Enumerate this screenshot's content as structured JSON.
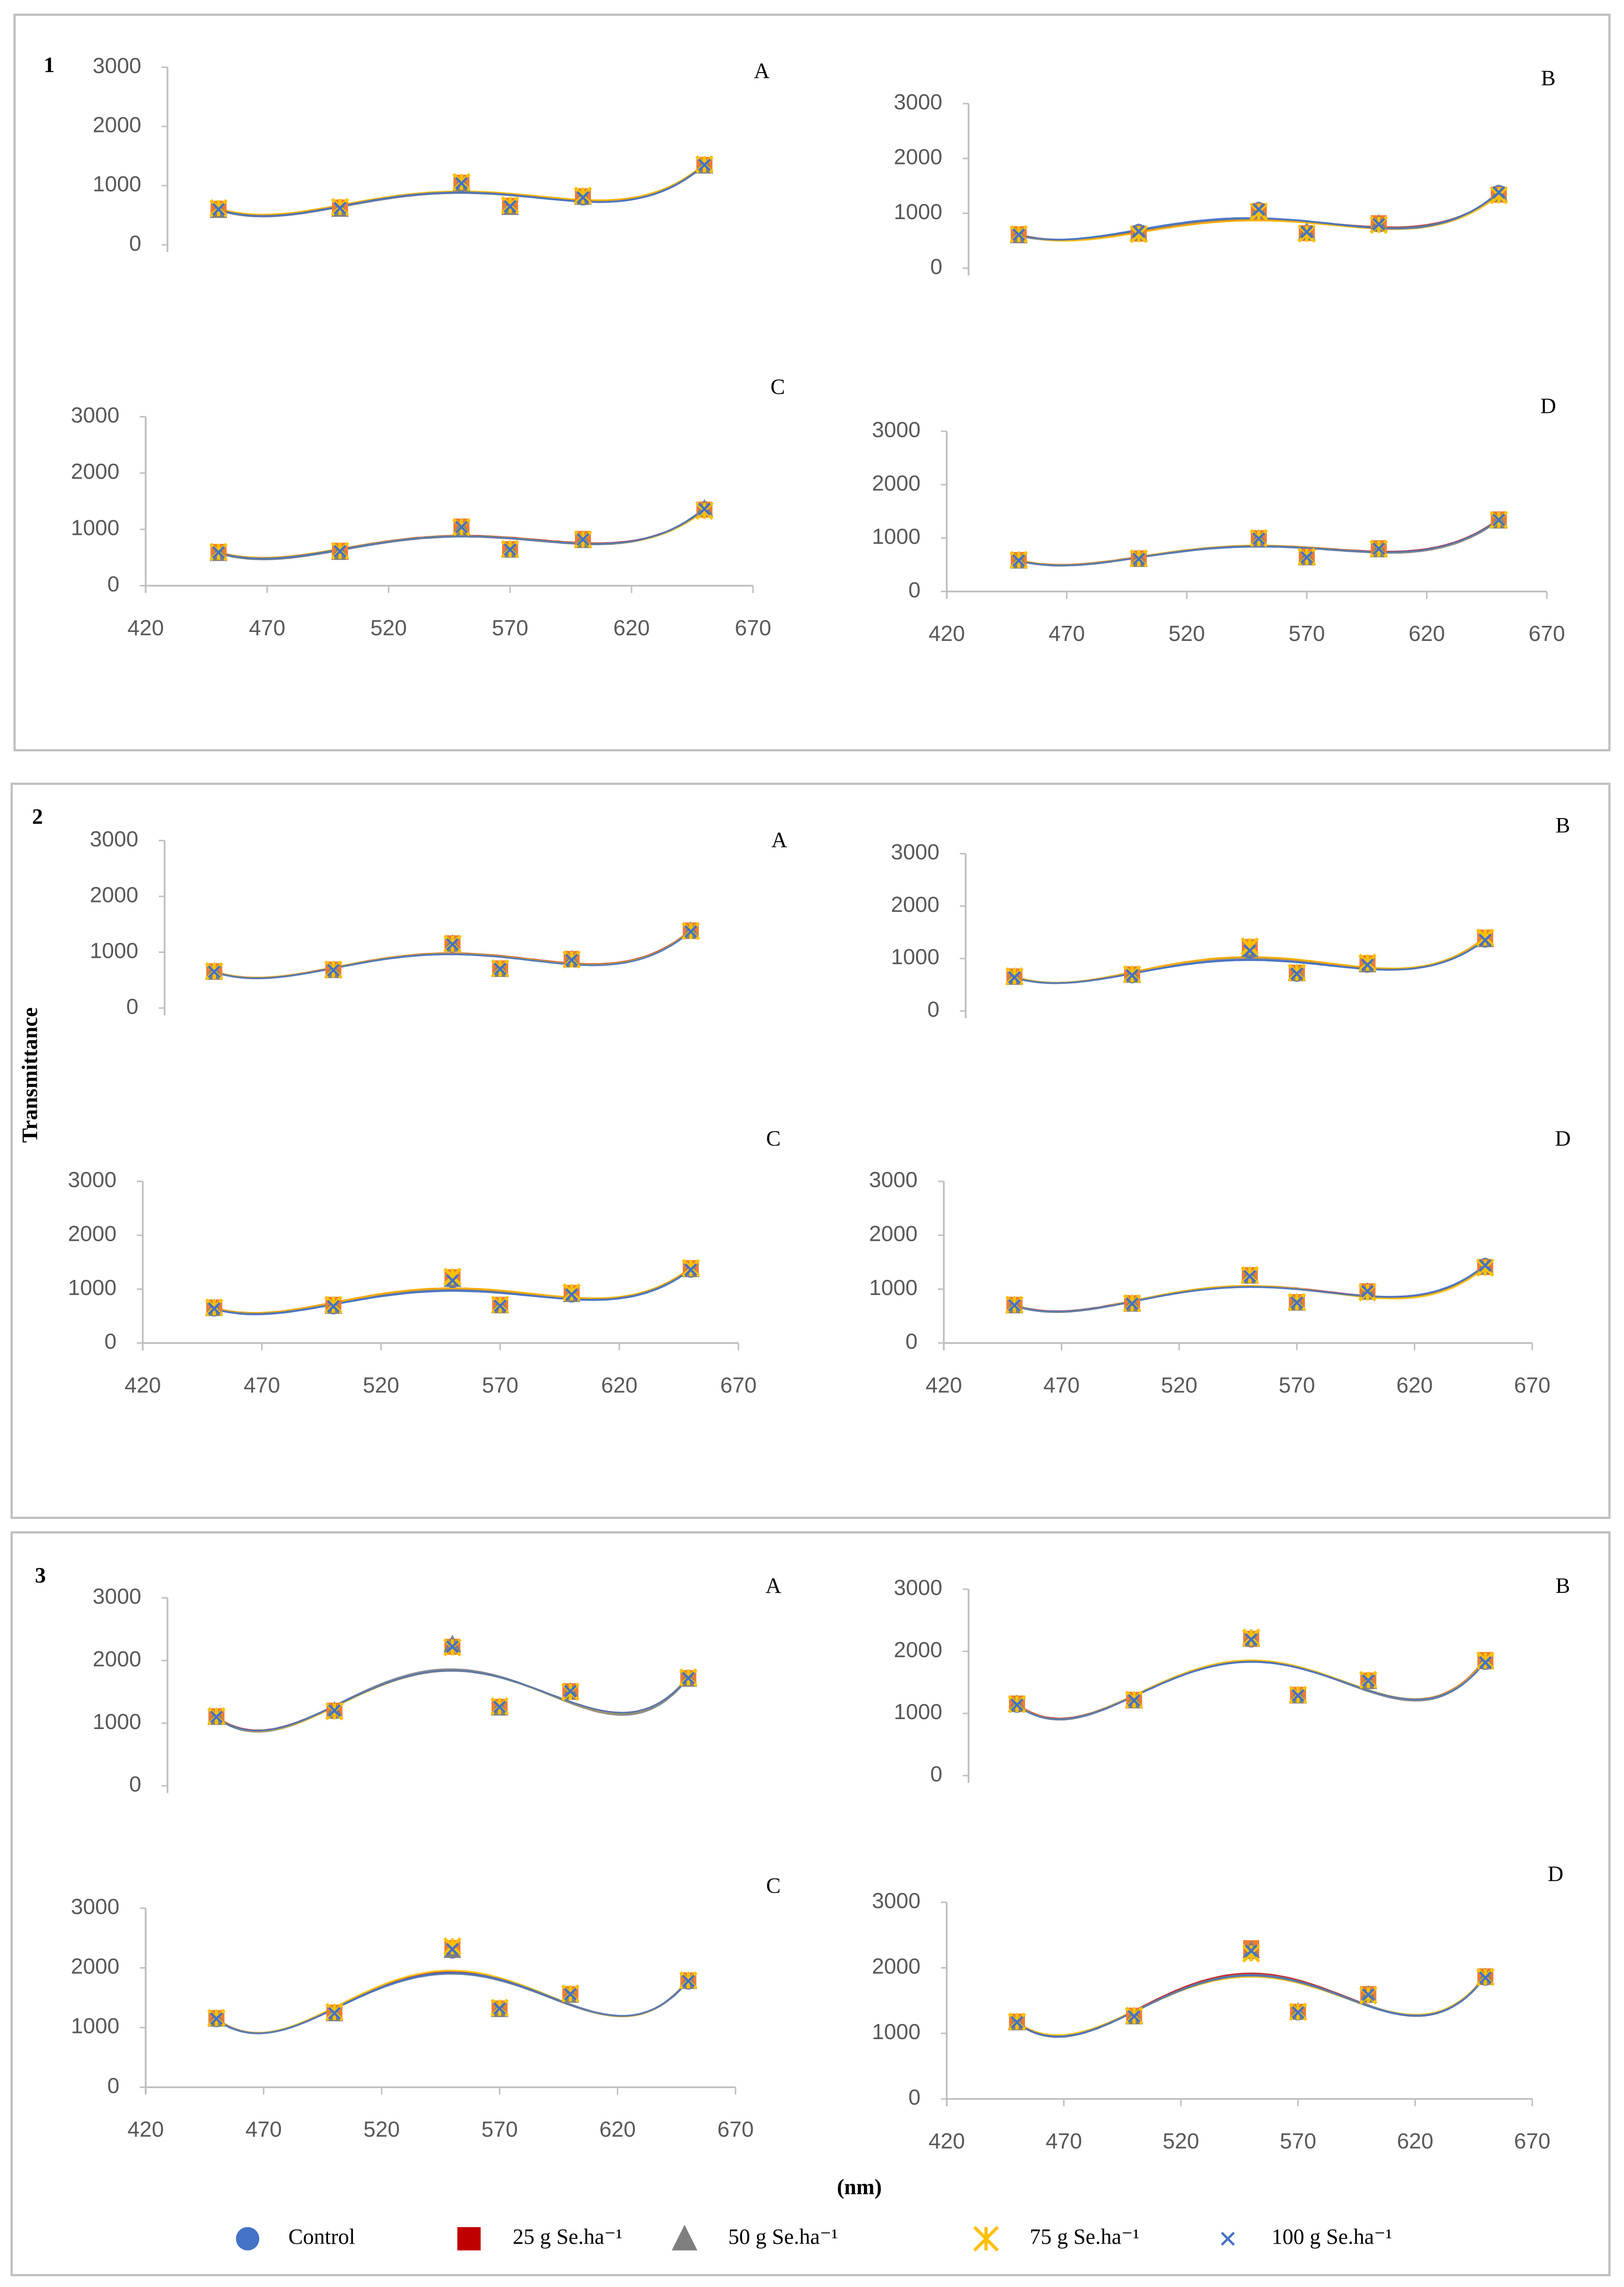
{
  "figure": {
    "panel_groups": [
      "1",
      "2",
      "3"
    ],
    "y_label": "Transmittance",
    "x_label": "(nm)",
    "legend": [
      {
        "name": "Control",
        "color": "#4472c4",
        "marker": "circle"
      },
      {
        "name": "25 g Se.ha⁻¹",
        "color": "#c00000",
        "marker": "square"
      },
      {
        "name": "50 g Se.ha⁻¹",
        "color": "#7f7f7f",
        "marker": "triangle"
      },
      {
        "name": "75 g Se.ha⁻¹",
        "color": "#ffc000",
        "marker": "star"
      },
      {
        "name": "100 g Se.ha⁻¹",
        "color": "#4472c4",
        "marker": "x"
      }
    ]
  },
  "chart_data": [
    {
      "type": "scatter",
      "title": "A",
      "trendline": "polynomial",
      "x": [
        450,
        500,
        550,
        570,
        600,
        650
      ],
      "ylim": [
        0,
        3000
      ],
      "yticks": [
        0,
        1000,
        2000,
        3000
      ],
      "series": [
        {
          "values": [
            600,
            620,
            1030,
            650,
            800,
            1340
          ]
        },
        {
          "values": [
            610,
            630,
            1050,
            660,
            820,
            1350
          ]
        },
        {
          "values": [
            590,
            610,
            1040,
            640,
            810,
            1340
          ]
        },
        {
          "values": [
            620,
            640,
            1060,
            670,
            830,
            1360
          ]
        },
        {
          "values": [
            600,
            620,
            1040,
            650,
            800,
            1350
          ]
        }
      ]
    },
    {
      "type": "scatter",
      "title": "B",
      "trendline": "polynomial",
      "x": [
        450,
        500,
        550,
        570,
        600,
        650
      ],
      "ylim": [
        0,
        3000
      ],
      "yticks": [
        0,
        1000,
        2000,
        3000
      ],
      "series": [
        {
          "values": [
            610,
            660,
            1060,
            650,
            800,
            1370
          ]
        },
        {
          "values": [
            620,
            630,
            1040,
            640,
            820,
            1340
          ]
        },
        {
          "values": [
            600,
            650,
            1050,
            660,
            810,
            1360
          ]
        },
        {
          "values": [
            620,
            620,
            1030,
            630,
            790,
            1330
          ]
        },
        {
          "values": [
            610,
            670,
            1070,
            660,
            800,
            1380
          ]
        }
      ]
    },
    {
      "type": "scatter",
      "title": "C",
      "trendline": "polynomial",
      "x": [
        450,
        500,
        550,
        570,
        600,
        650
      ],
      "xlim": [
        420,
        670
      ],
      "xticks": [
        420,
        470,
        520,
        570,
        620,
        670
      ],
      "ylim": [
        0,
        3000
      ],
      "yticks": [
        0,
        1000,
        2000,
        3000
      ],
      "series": [
        {
          "values": [
            590,
            600,
            1040,
            640,
            820,
            1360
          ]
        },
        {
          "values": [
            600,
            620,
            1050,
            650,
            830,
            1350
          ]
        },
        {
          "values": [
            580,
            600,
            1030,
            640,
            810,
            1370
          ]
        },
        {
          "values": [
            600,
            620,
            1040,
            650,
            820,
            1330
          ]
        },
        {
          "values": [
            590,
            610,
            1040,
            640,
            820,
            1360
          ]
        }
      ]
    },
    {
      "type": "scatter",
      "title": "D",
      "trendline": "polynomial",
      "x": [
        450,
        500,
        550,
        570,
        600,
        650
      ],
      "xlim": [
        420,
        670
      ],
      "xticks": [
        420,
        470,
        520,
        570,
        620,
        670
      ],
      "ylim": [
        0,
        3000
      ],
      "yticks": [
        0,
        1000,
        2000,
        3000
      ],
      "series": [
        {
          "values": [
            580,
            610,
            980,
            640,
            800,
            1340
          ]
        },
        {
          "values": [
            590,
            620,
            1000,
            650,
            810,
            1350
          ]
        },
        {
          "values": [
            580,
            610,
            990,
            640,
            790,
            1330
          ]
        },
        {
          "values": [
            590,
            620,
            1000,
            650,
            800,
            1340
          ]
        },
        {
          "values": [
            580,
            610,
            990,
            640,
            800,
            1340
          ]
        }
      ]
    },
    {
      "type": "scatter",
      "title": "A",
      "trendline": "polynomial",
      "x": [
        450,
        500,
        550,
        570,
        600,
        650
      ],
      "ylim": [
        0,
        3000
      ],
      "yticks": [
        0,
        1000,
        2000,
        3000
      ],
      "series": [
        {
          "values": [
            650,
            680,
            1140,
            700,
            870,
            1380
          ]
        },
        {
          "values": [
            660,
            690,
            1160,
            710,
            880,
            1390
          ]
        },
        {
          "values": [
            650,
            680,
            1150,
            700,
            870,
            1380
          ]
        },
        {
          "values": [
            660,
            690,
            1150,
            710,
            870,
            1380
          ]
        },
        {
          "values": [
            650,
            680,
            1140,
            700,
            860,
            1370
          ]
        }
      ]
    },
    {
      "type": "scatter",
      "title": "B",
      "trendline": "polynomial",
      "x": [
        450,
        500,
        550,
        570,
        600,
        650
      ],
      "ylim": [
        0,
        3000
      ],
      "yticks": [
        0,
        1000,
        2000,
        3000
      ],
      "series": [
        {
          "values": [
            650,
            680,
            1150,
            710,
            880,
            1360
          ]
        },
        {
          "values": [
            660,
            700,
            1220,
            730,
            910,
            1400
          ]
        },
        {
          "values": [
            650,
            690,
            1180,
            720,
            890,
            1370
          ]
        },
        {
          "values": [
            660,
            700,
            1230,
            730,
            920,
            1400
          ]
        },
        {
          "values": [
            640,
            680,
            1150,
            710,
            880,
            1350
          ]
        }
      ]
    },
    {
      "type": "scatter",
      "title": "C",
      "trendline": "polynomial",
      "x": [
        450,
        500,
        550,
        570,
        600,
        650
      ],
      "xlim": [
        420,
        670
      ],
      "xticks": [
        420,
        470,
        520,
        570,
        620,
        670
      ],
      "ylim": [
        0,
        3000
      ],
      "yticks": [
        0,
        1000,
        2000,
        3000
      ],
      "series": [
        {
          "values": [
            640,
            680,
            1170,
            700,
            900,
            1360
          ]
        },
        {
          "values": [
            660,
            710,
            1220,
            710,
            930,
            1390
          ]
        },
        {
          "values": [
            650,
            690,
            1190,
            700,
            910,
            1370
          ]
        },
        {
          "values": [
            660,
            710,
            1230,
            710,
            940,
            1390
          ]
        },
        {
          "values": [
            640,
            680,
            1160,
            690,
            900,
            1360
          ]
        }
      ]
    },
    {
      "type": "scatter",
      "title": "D",
      "trendline": "polynomial",
      "x": [
        450,
        500,
        550,
        570,
        600,
        650
      ],
      "xlim": [
        420,
        670
      ],
      "xticks": [
        420,
        470,
        520,
        570,
        620,
        670
      ],
      "ylim": [
        0,
        3000
      ],
      "yticks": [
        0,
        1000,
        2000,
        3000
      ],
      "series": [
        {
          "values": [
            700,
            730,
            1250,
            750,
            950,
            1430
          ]
        },
        {
          "values": [
            710,
            740,
            1260,
            760,
            960,
            1410
          ]
        },
        {
          "values": [
            700,
            730,
            1250,
            750,
            950,
            1420
          ]
        },
        {
          "values": [
            710,
            740,
            1260,
            760,
            940,
            1400
          ]
        },
        {
          "values": [
            700,
            730,
            1240,
            750,
            960,
            1440
          ]
        }
      ]
    },
    {
      "type": "scatter",
      "title": "A",
      "trendline": "polynomial",
      "x": [
        450,
        500,
        550,
        570,
        600,
        650
      ],
      "ylim": [
        0,
        3000
      ],
      "yticks": [
        0,
        1000,
        2000,
        3000
      ],
      "series": [
        {
          "values": [
            1100,
            1190,
            2230,
            1260,
            1500,
            1720
          ]
        },
        {
          "values": [
            1110,
            1200,
            2220,
            1260,
            1510,
            1720
          ]
        },
        {
          "values": [
            1100,
            1200,
            2260,
            1250,
            1500,
            1710
          ]
        },
        {
          "values": [
            1110,
            1190,
            2210,
            1270,
            1500,
            1730
          ]
        },
        {
          "values": [
            1100,
            1200,
            2220,
            1260,
            1510,
            1720
          ]
        }
      ]
    },
    {
      "type": "scatter",
      "title": "B",
      "trendline": "polynomial",
      "x": [
        450,
        500,
        550,
        570,
        600,
        650
      ],
      "ylim": [
        0,
        3000
      ],
      "yticks": [
        0,
        1000,
        2000,
        3000
      ],
      "series": [
        {
          "values": [
            1140,
            1210,
            2190,
            1290,
            1530,
            1830
          ]
        },
        {
          "values": [
            1160,
            1220,
            2200,
            1300,
            1530,
            1860
          ]
        },
        {
          "values": [
            1150,
            1210,
            2210,
            1290,
            1520,
            1840
          ]
        },
        {
          "values": [
            1150,
            1220,
            2220,
            1300,
            1540,
            1850
          ]
        },
        {
          "values": [
            1140,
            1210,
            2190,
            1290,
            1530,
            1820
          ]
        }
      ]
    },
    {
      "type": "scatter",
      "title": "C",
      "trendline": "polynomial",
      "x": [
        450,
        500,
        550,
        570,
        600,
        650
      ],
      "xlim": [
        420,
        670
      ],
      "xticks": [
        420,
        470,
        520,
        570,
        620,
        670
      ],
      "ylim": [
        0,
        3000
      ],
      "yticks": [
        0,
        1000,
        2000,
        3000
      ],
      "series": [
        {
          "values": [
            1140,
            1240,
            2290,
            1310,
            1550,
            1770
          ]
        },
        {
          "values": [
            1160,
            1250,
            2330,
            1320,
            1560,
            1790
          ]
        },
        {
          "values": [
            1150,
            1240,
            2300,
            1310,
            1550,
            1780
          ]
        },
        {
          "values": [
            1160,
            1260,
            2360,
            1330,
            1570,
            1790
          ]
        },
        {
          "values": [
            1150,
            1240,
            2310,
            1320,
            1560,
            1780
          ]
        }
      ]
    },
    {
      "type": "scatter",
      "title": "D",
      "trendline": "polynomial",
      "x": [
        450,
        500,
        550,
        570,
        600,
        650
      ],
      "xlim": [
        420,
        670
      ],
      "xticks": [
        420,
        470,
        520,
        570,
        620,
        670
      ],
      "ylim": [
        0,
        3000
      ],
      "yticks": [
        0,
        1000,
        2000,
        3000
      ],
      "series": [
        {
          "values": [
            1170,
            1260,
            2250,
            1320,
            1580,
            1850
          ]
        },
        {
          "values": [
            1180,
            1270,
            2300,
            1330,
            1600,
            1870
          ]
        },
        {
          "values": [
            1170,
            1260,
            2270,
            1330,
            1590,
            1860
          ]
        },
        {
          "values": [
            1180,
            1270,
            2220,
            1330,
            1580,
            1860
          ]
        },
        {
          "values": [
            1170,
            1260,
            2260,
            1320,
            1590,
            1850
          ]
        }
      ]
    }
  ]
}
